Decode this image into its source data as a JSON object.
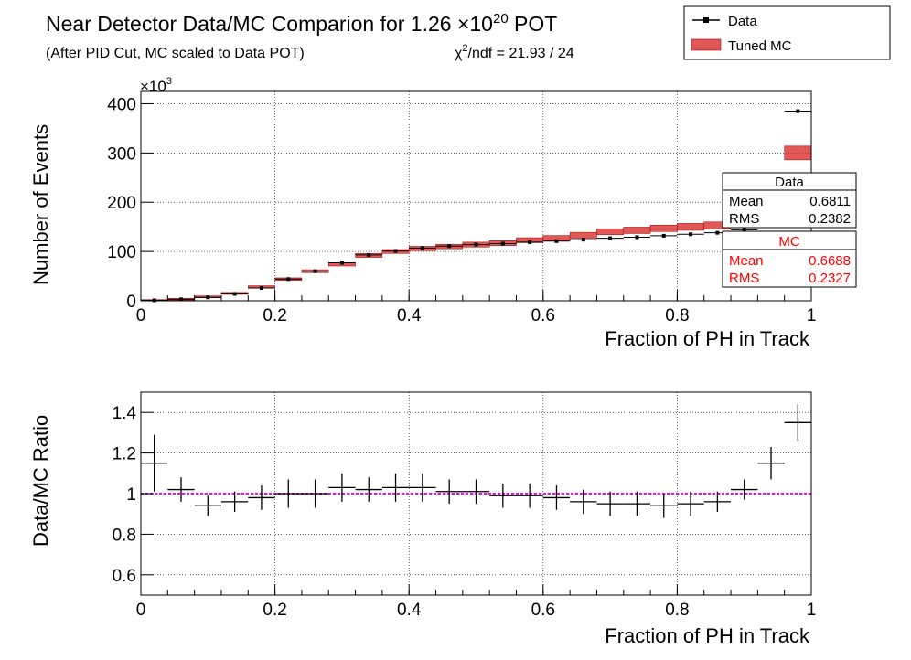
{
  "header": {
    "title_main": "Near Detector Data/MC Comparion for 1.26 ×10",
    "title_exp": "20",
    "title_tail": " POT",
    "subtitle": "(After PID Cut, MC scaled to Data POT)",
    "chi2_sym": "χ",
    "chi2_exp": "2",
    "chi2_text": "/ndf = 21.93 / 24"
  },
  "legend": {
    "position": "top-right",
    "data_label": "Data",
    "mc_label": "Tuned MC"
  },
  "stats": {
    "data_title": "Data",
    "data_mean_label": "Mean",
    "data_mean": "0.6811",
    "data_rms_label": "RMS",
    "data_rms": "0.2382",
    "mc_title": "MC",
    "mc_mean_label": "Mean",
    "mc_mean": "0.6688",
    "mc_rms_label": "RMS",
    "mc_rms": "0.2327"
  },
  "colors": {
    "data": "#000000",
    "mc_fill": "#d62020",
    "mc_line": "#a00000",
    "stats_mc": "#ff0000",
    "reference_line": "#ff00ff",
    "grid": "#000000"
  },
  "chart_data": [
    {
      "type": "histogram",
      "panel": "top",
      "xlabel": "Fraction of PH in Track",
      "ylabel": "Number of Events",
      "y_multiplier": "×10",
      "y_multiplier_exp": "3",
      "xlim": [
        0,
        1
      ],
      "ylim": [
        0,
        425
      ],
      "xticks": [
        "0",
        "0.2",
        "0.4",
        "0.6",
        "0.8",
        "1"
      ],
      "yticks": [
        "0",
        "100",
        "200",
        "300",
        "400"
      ],
      "grid": true,
      "bin_edges": [
        0,
        0.04,
        0.08,
        0.12,
        0.16,
        0.2,
        0.24,
        0.28,
        0.32,
        0.36,
        0.4,
        0.44,
        0.48,
        0.52,
        0.56,
        0.6,
        0.64,
        0.68,
        0.72,
        0.76,
        0.8,
        0.84,
        0.88,
        0.92,
        0.96,
        1.0
      ],
      "series": [
        {
          "name": "Data",
          "values": [
            1,
            3,
            7,
            14,
            26,
            44,
            60,
            77,
            93,
            101,
            107,
            111,
            114,
            116,
            119,
            121,
            124,
            127,
            129,
            132,
            135,
            138,
            144,
            160,
            385
          ]
        },
        {
          "name": "Tuned MC",
          "values": [
            1,
            3,
            8,
            15,
            28,
            44,
            60,
            74,
            92,
            100,
            106,
            110,
            114,
            117,
            123,
            127,
            133,
            140,
            143,
            147,
            150,
            153,
            156,
            158,
            300
          ],
          "band": [
            1.5,
            2,
            2,
            2,
            2.5,
            2.5,
            3,
            3.5,
            4,
            4,
            4.5,
            4.5,
            5,
            5,
            5,
            5.5,
            6,
            6,
            6.5,
            6.5,
            7,
            7,
            7,
            7,
            14
          ]
        }
      ]
    },
    {
      "type": "scatter",
      "panel": "bottom",
      "xlabel": "Fraction of PH in Track",
      "ylabel": "Data/MC Ratio",
      "xlim": [
        0,
        1
      ],
      "ylim": [
        0.5,
        1.5
      ],
      "xticks": [
        "0",
        "0.2",
        "0.4",
        "0.6",
        "0.8",
        "1"
      ],
      "yticks": [
        "0.6",
        "0.8",
        "1",
        "1.2",
        "1.4"
      ],
      "grid": true,
      "reference_y": 1.0,
      "x_halfwidth": 0.02,
      "series": [
        {
          "name": "Data/MC Ratio",
          "x": [
            0.02,
            0.06,
            0.1,
            0.14,
            0.18,
            0.22,
            0.26,
            0.3,
            0.34,
            0.38,
            0.42,
            0.46,
            0.5,
            0.54,
            0.58,
            0.62,
            0.66,
            0.7,
            0.74,
            0.78,
            0.82,
            0.86,
            0.9,
            0.94,
            0.98
          ],
          "y": [
            1.15,
            1.02,
            0.94,
            0.96,
            0.98,
            1.0,
            1.0,
            1.03,
            1.02,
            1.03,
            1.03,
            1.01,
            1.01,
            0.99,
            0.99,
            0.98,
            0.96,
            0.95,
            0.95,
            0.94,
            0.95,
            0.96,
            1.02,
            1.15,
            1.35
          ],
          "yerr": [
            0.14,
            0.06,
            0.05,
            0.05,
            0.06,
            0.07,
            0.07,
            0.07,
            0.06,
            0.07,
            0.07,
            0.06,
            0.06,
            0.06,
            0.06,
            0.06,
            0.06,
            0.06,
            0.06,
            0.06,
            0.06,
            0.05,
            0.05,
            0.08,
            0.09
          ]
        }
      ]
    }
  ]
}
